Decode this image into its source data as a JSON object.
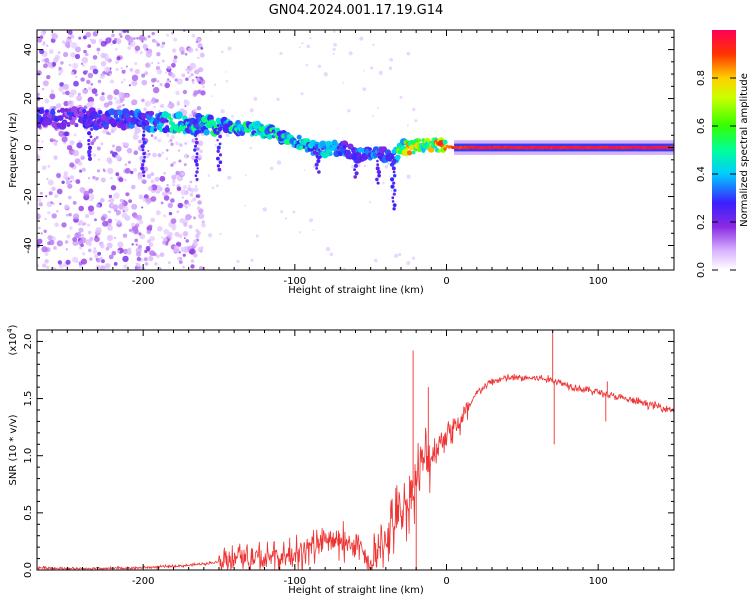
{
  "title": "GN04.2024.001.17.19.G14",
  "chart_data": [
    {
      "type": "heatmap",
      "xlabel": "Height of straight line (km)",
      "ylabel": "Frequency (Hz)",
      "xlim": [
        -270,
        150
      ],
      "ylim": [
        -50,
        48
      ],
      "xticks": [
        -200,
        -100,
        0,
        100
      ],
      "yticks": [
        -40,
        -20,
        0,
        20,
        40
      ],
      "colorbar": {
        "label": "Normalized spectral amplitude",
        "range": [
          0,
          1
        ],
        "ticks": [
          "0.0",
          "0.2",
          "0.4",
          "0.6",
          "0.8"
        ]
      },
      "ridge": {
        "x": [
          -270,
          -240,
          -200,
          -180,
          -150,
          -120,
          -100,
          -85,
          -70,
          -60,
          -50,
          -40,
          -35,
          -30,
          -25,
          -15,
          -5,
          5,
          20,
          60,
          100,
          150
        ],
        "frequency": [
          12,
          12,
          11,
          10,
          9,
          7,
          3,
          -1,
          0,
          -3,
          -2,
          -3,
          -4,
          0,
          0,
          1,
          1,
          0,
          0,
          0,
          0,
          0
        ],
        "amplitude": [
          0.25,
          0.25,
          0.3,
          0.45,
          0.45,
          0.45,
          0.45,
          0.4,
          0.35,
          0.3,
          0.35,
          0.3,
          0.3,
          0.6,
          0.7,
          0.7,
          0.75,
          0.9,
          0.95,
          0.95,
          0.95,
          0.95
        ]
      }
    },
    {
      "type": "line",
      "xlabel": "Height of straight line (km)",
      "ylabel": "SNR (10 * v/v)",
      "multiplier_base": "x10",
      "multiplier_exp": "4",
      "xlim": [
        -270,
        150
      ],
      "ylim": [
        0,
        2.1
      ],
      "xticks": [
        -200,
        -100,
        0,
        100
      ],
      "yticks": [
        "0.0",
        "0.5",
        "1.0",
        "1.5",
        "2.0"
      ],
      "color": "#ee3333",
      "series": [
        {
          "x": [
            -270,
            -240,
            -200,
            -170,
            -150,
            -140,
            -120,
            -100,
            -90,
            -80,
            -70,
            -60,
            -50,
            -45,
            -40,
            -35,
            -30,
            -25,
            -20,
            -15,
            -10,
            -5,
            0,
            10,
            20,
            30,
            40,
            50,
            60,
            70,
            80,
            90,
            100,
            110,
            130,
            150
          ],
          "values": [
            0.02,
            0.01,
            0.02,
            0.04,
            0.07,
            0.12,
            0.1,
            0.12,
            0.2,
            0.25,
            0.25,
            0.22,
            0.02,
            0.1,
            0.3,
            0.4,
            0.5,
            0.6,
            0.8,
            0.95,
            1.0,
            1.1,
            1.2,
            1.3,
            1.55,
            1.65,
            1.68,
            1.68,
            1.68,
            1.66,
            1.62,
            1.58,
            1.56,
            1.52,
            1.46,
            1.4
          ]
        }
      ]
    }
  ]
}
